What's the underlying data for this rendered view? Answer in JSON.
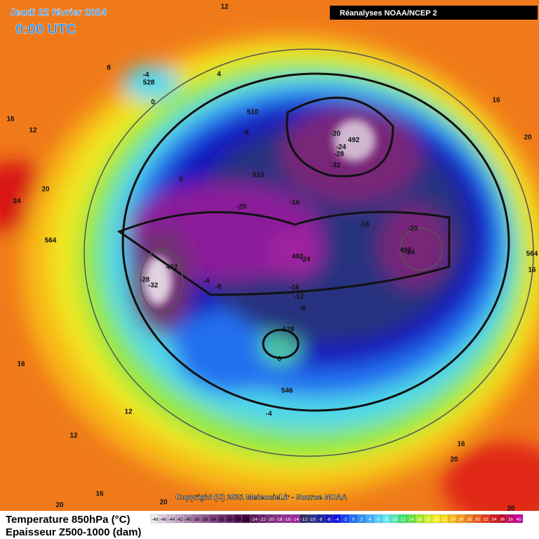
{
  "header": {
    "date": "Jeudi 22 février 2024",
    "time": "0:00 UTC",
    "source": "Réanalyses NOAA/NCEP 2"
  },
  "copyright": "Copyright (C) 2021 Meteociel.fr - Source NOAA",
  "legend": {
    "temperature": "Temperature 850hPa (°C)",
    "thickness": "Epaisseur Z500-1000 (dam)"
  },
  "scale": {
    "values": [
      -48,
      -46,
      -44,
      -42,
      -40,
      -38,
      -36,
      -34,
      -32,
      -30,
      -28,
      -26,
      -24,
      -22,
      -20,
      -18,
      -16,
      -14,
      -12,
      -10,
      -8,
      -6,
      -4,
      -2,
      0,
      2,
      4,
      6,
      8,
      10,
      12,
      14,
      16,
      18,
      20,
      22,
      24,
      26,
      28,
      30,
      32,
      34,
      36,
      38,
      40
    ],
    "colors": [
      "#f0e8f0",
      "#e0d0e0",
      "#d0b8d0",
      "#c0a0c0",
      "#b088b0",
      "#a070a0",
      "#905890",
      "#804080",
      "#703070",
      "#602060",
      "#501050",
      "#400840",
      "#581858",
      "#682068",
      "#782878",
      "#883088",
      "#982898",
      "#a020a0",
      "#302860",
      "#283080",
      "#2020a0",
      "#1818c0",
      "#1010e0",
      "#1840f0",
      "#2070f0",
      "#3090f0",
      "#40b0f8",
      "#50d0f8",
      "#60e8f0",
      "#50e8b0",
      "#40e070",
      "#60e040",
      "#a0e830",
      "#d0f020",
      "#f0f020",
      "#f8d818",
      "#f8b818",
      "#f89818",
      "#f07818",
      "#e85818",
      "#e03818",
      "#d01818",
      "#c00828",
      "#c00060",
      "#c000a0"
    ]
  },
  "map_labels": [
    12,
    8,
    -4,
    528,
    0,
    4,
    510,
    -8,
    16,
    12,
    0,
    20,
    24,
    510,
    -20,
    -16,
    -20,
    -24,
    -28,
    492,
    -32,
    -16,
    -20,
    492,
    -24,
    16,
    20,
    564,
    492,
    -28,
    -32,
    -4,
    -8,
    492,
    -24,
    -16,
    -12,
    -8,
    528,
    0,
    546,
    -4,
    16,
    12,
    12,
    16,
    20,
    20,
    16,
    20,
    20,
    16,
    564
  ]
}
